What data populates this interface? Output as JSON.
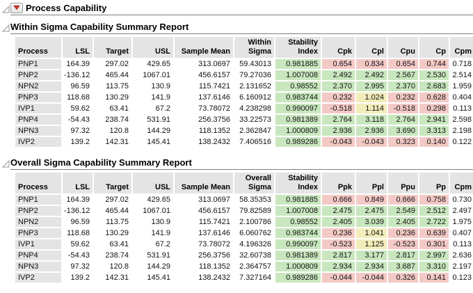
{
  "window": {
    "title": "Process Capability"
  },
  "palette": {
    "g": "#c9e7bf",
    "r": "#f3c9c5",
    "y": "#f2edba",
    "header_bg": "#e4e4e4",
    "menu_red": "#c4342d",
    "rule_gray": "#7d7d7d"
  },
  "icons": {
    "disclosure": "open-disclosure-triangle",
    "menu": "red-triangle"
  },
  "sections": [
    {
      "title": "Within Sigma Capability Summary Report",
      "columns": [
        "Process",
        "LSL",
        "Target",
        "USL",
        "Sample Mean",
        "Within Sigma",
        "Stability Index",
        "Cpk",
        "Cpl",
        "Cpu",
        "Cp",
        "Cpm"
      ],
      "rows": [
        {
          "values": [
            "PNP1",
            "164.39",
            "297.02",
            "429.65",
            "313.0697",
            "59.43013",
            "0.981885",
            "0.654",
            "0.834",
            "0.654",
            "0.744",
            "0.718"
          ],
          "marks": [
            "",
            "",
            "",
            "",
            "",
            "",
            "g",
            "r",
            "r",
            "r",
            "r",
            ""
          ]
        },
        {
          "values": [
            "PNP2",
            "-136.12",
            "465.44",
            "1067.01",
            "456.6157",
            "79.27036",
            "1.007008",
            "2.492",
            "2.492",
            "2.567",
            "2.530",
            "2.514"
          ],
          "marks": [
            "",
            "",
            "",
            "",
            "",
            "",
            "g",
            "g",
            "g",
            "g",
            "g",
            ""
          ]
        },
        {
          "values": [
            "NPN2",
            "96.59",
            "113.75",
            "130.9",
            "115.7421",
            "2.131652",
            "0.98552",
            "2.370",
            "2.995",
            "2.370",
            "2.683",
            "1.959"
          ],
          "marks": [
            "",
            "",
            "",
            "",
            "",
            "",
            "g",
            "g",
            "g",
            "g",
            "g",
            ""
          ]
        },
        {
          "values": [
            "PNP3",
            "118.68",
            "130.29",
            "141.9",
            "137.6146",
            "6.160912",
            "0.983744",
            "0.232",
            "1.024",
            "0.232",
            "0.628",
            "0.404"
          ],
          "marks": [
            "",
            "",
            "",
            "",
            "",
            "",
            "g",
            "r",
            "y",
            "r",
            "r",
            ""
          ]
        },
        {
          "values": [
            "IVP1",
            "59.62",
            "63.41",
            "67.2",
            "73.78072",
            "4.238298",
            "0.990097",
            "-0.518",
            "1.114",
            "-0.518",
            "0.298",
            "0.113"
          ],
          "marks": [
            "",
            "",
            "",
            "",
            "",
            "",
            "g",
            "r",
            "y",
            "r",
            "r",
            ""
          ]
        },
        {
          "values": [
            "PNP4",
            "-54.43",
            "238.74",
            "531.91",
            "256.3756",
            "33.22573",
            "0.981389",
            "2.764",
            "3.118",
            "2.764",
            "2.941",
            "2.598"
          ],
          "marks": [
            "",
            "",
            "",
            "",
            "",
            "",
            "g",
            "g",
            "g",
            "g",
            "g",
            ""
          ]
        },
        {
          "values": [
            "NPN3",
            "97.32",
            "120.8",
            "144.29",
            "118.1352",
            "2.362847",
            "1.000809",
            "2.936",
            "2.936",
            "3.690",
            "3.313",
            "2.198"
          ],
          "marks": [
            "",
            "",
            "",
            "",
            "",
            "",
            "g",
            "g",
            "g",
            "g",
            "g",
            ""
          ]
        },
        {
          "values": [
            "IVP2",
            "139.2",
            "142.31",
            "145.41",
            "138.2432",
            "7.406516",
            "0.989286",
            "-0.043",
            "-0.043",
            "0.323",
            "0.140",
            "0.122"
          ],
          "marks": [
            "",
            "",
            "",
            "",
            "",
            "",
            "g",
            "r",
            "r",
            "r",
            "r",
            ""
          ]
        }
      ]
    },
    {
      "title": "Overall Sigma Capability Summary Report",
      "columns": [
        "Process",
        "LSL",
        "Target",
        "USL",
        "Sample Mean",
        "Overall Sigma",
        "Stability Index",
        "Ppk",
        "Ppl",
        "Ppu",
        "Pp",
        "Cpm"
      ],
      "rows": [
        {
          "values": [
            "PNP1",
            "164.39",
            "297.02",
            "429.65",
            "313.0697",
            "58.35353",
            "0.981885",
            "0.666",
            "0.849",
            "0.666",
            "0.758",
            "0.730"
          ],
          "marks": [
            "",
            "",
            "",
            "",
            "",
            "",
            "g",
            "r",
            "r",
            "r",
            "r",
            ""
          ]
        },
        {
          "values": [
            "PNP2",
            "-136.12",
            "465.44",
            "1067.01",
            "456.6157",
            "79.82589",
            "1.007008",
            "2.475",
            "2.475",
            "2.549",
            "2.512",
            "2.497"
          ],
          "marks": [
            "",
            "",
            "",
            "",
            "",
            "",
            "g",
            "g",
            "g",
            "g",
            "g",
            ""
          ]
        },
        {
          "values": [
            "NPN2",
            "96.59",
            "113.75",
            "130.9",
            "115.7421",
            "2.100786",
            "0.98552",
            "2.405",
            "3.039",
            "2.405",
            "2.722",
            "1.975"
          ],
          "marks": [
            "",
            "",
            "",
            "",
            "",
            "",
            "g",
            "g",
            "g",
            "g",
            "g",
            ""
          ]
        },
        {
          "values": [
            "PNP3",
            "118.68",
            "130.29",
            "141.9",
            "137.6146",
            "6.060762",
            "0.983744",
            "0.236",
            "1.041",
            "0.236",
            "0.639",
            "0.407"
          ],
          "marks": [
            "",
            "",
            "",
            "",
            "",
            "",
            "g",
            "r",
            "y",
            "r",
            "r",
            ""
          ]
        },
        {
          "values": [
            "IVP1",
            "59.62",
            "63.41",
            "67.2",
            "73.78072",
            "4.196326",
            "0.990097",
            "-0.523",
            "1.125",
            "-0.523",
            "0.301",
            "0.113"
          ],
          "marks": [
            "",
            "",
            "",
            "",
            "",
            "",
            "g",
            "r",
            "y",
            "r",
            "r",
            ""
          ]
        },
        {
          "values": [
            "PNP4",
            "-54.43",
            "238.74",
            "531.91",
            "256.3756",
            "32.60738",
            "0.981389",
            "2.817",
            "3.177",
            "2.817",
            "2.997",
            "2.636"
          ],
          "marks": [
            "",
            "",
            "",
            "",
            "",
            "",
            "g",
            "g",
            "g",
            "g",
            "g",
            ""
          ]
        },
        {
          "values": [
            "NPN3",
            "97.32",
            "120.8",
            "144.29",
            "118.1352",
            "2.364757",
            "1.000809",
            "2.934",
            "2.934",
            "3.687",
            "3.310",
            "2.197"
          ],
          "marks": [
            "",
            "",
            "",
            "",
            "",
            "",
            "g",
            "g",
            "g",
            "g",
            "g",
            ""
          ]
        },
        {
          "values": [
            "IVP2",
            "139.2",
            "142.31",
            "145.41",
            "138.2432",
            "7.327164",
            "0.989286",
            "-0.044",
            "-0.044",
            "0.326",
            "0.141",
            "0.123"
          ],
          "marks": [
            "",
            "",
            "",
            "",
            "",
            "",
            "g",
            "r",
            "r",
            "r",
            "r",
            ""
          ]
        }
      ]
    }
  ]
}
